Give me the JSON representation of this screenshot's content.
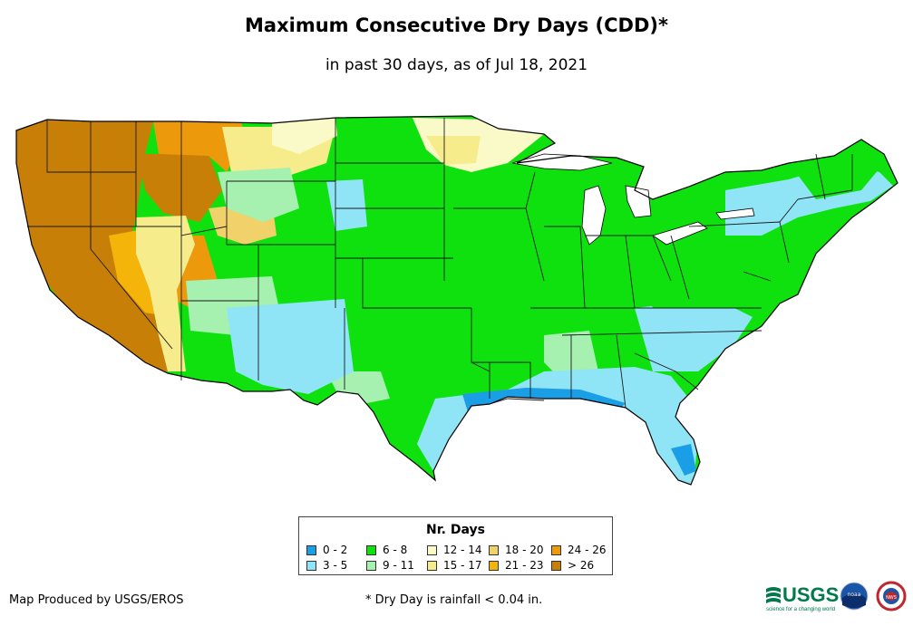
{
  "title": "Maximum Consecutive Dry Days (CDD)*",
  "subtitle": "in past 30 days, as of Jul 18, 2021",
  "legend": {
    "title": "Nr. Days",
    "items": [
      {
        "label": "0 - 2",
        "color": "#1a9fe6"
      },
      {
        "label": "3 - 5",
        "color": "#8fe4f5"
      },
      {
        "label": "6 - 8",
        "color": "#0fe10f"
      },
      {
        "label": "9 - 11",
        "color": "#a6f0b0"
      },
      {
        "label": "12 - 14",
        "color": "#fafac8"
      },
      {
        "label": "15 - 17",
        "color": "#f6ec8c"
      },
      {
        "label": "18 - 20",
        "color": "#f1d16a"
      },
      {
        "label": "21 - 23",
        "color": "#f5b40a"
      },
      {
        "label": "24 - 26",
        "color": "#ec9a0c"
      },
      {
        "label": "> 26",
        "color": "#c77f08"
      }
    ]
  },
  "credit": "Map Produced by USGS/EROS",
  "footnote": "* Dry Day is rainfall < 0.04 in.",
  "logos": {
    "usgs": "USGS",
    "usgs_tagline": "science for a changing world",
    "noaa": "noaa",
    "nws": "NWS"
  }
}
